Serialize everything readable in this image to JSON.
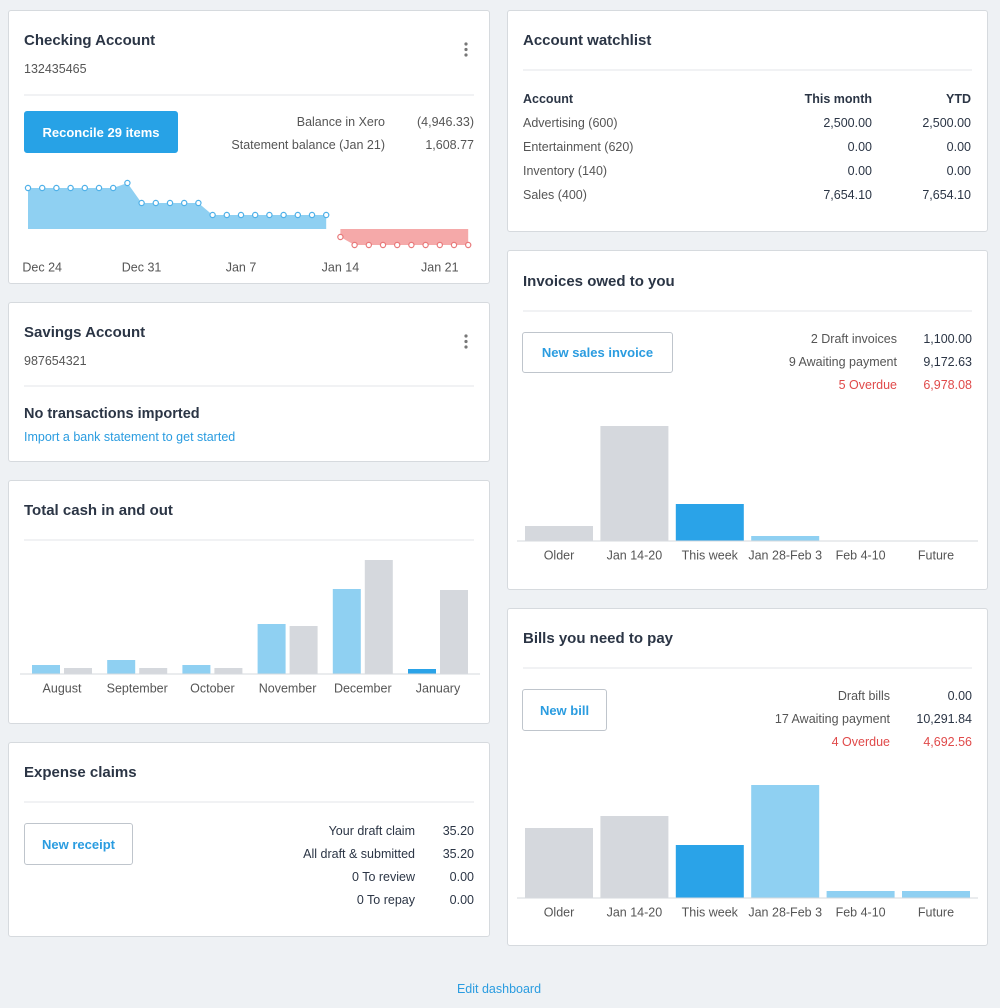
{
  "checking": {
    "title": "Checking Account",
    "number": "132435465",
    "button": "Reconcile 29 items",
    "rows": [
      {
        "label": "Balance in Xero",
        "value": "(4,946.33)"
      },
      {
        "label": "Statement balance (Jan 21)",
        "value": "1,608.77"
      }
    ],
    "chart": {
      "type": "area",
      "categories": [
        null,
        "Dec 24",
        null,
        null,
        null,
        null,
        null,
        null,
        "Dec 31",
        null,
        null,
        null,
        null,
        null,
        null,
        "Jan 7",
        null,
        null,
        null,
        null,
        null,
        null,
        "Jan 14",
        null,
        null,
        null,
        null,
        null,
        null,
        "Jan 21",
        null,
        null
      ],
      "values": [
        41,
        41,
        41,
        41,
        41,
        41,
        41,
        46,
        26,
        26,
        26,
        26,
        26,
        14,
        14,
        14,
        14,
        14,
        14,
        14,
        14,
        14,
        -8,
        -16,
        -16,
        -16,
        -16,
        -16,
        -16,
        -16,
        -16,
        -16
      ],
      "colors": {
        "positive": "#8fd0f2",
        "negative": "#f5a9a9"
      }
    }
  },
  "savings": {
    "title": "Savings Account",
    "number": "987654321",
    "message": "No transactions imported",
    "link": "Import a bank statement to get started"
  },
  "cash": {
    "title": "Total cash in and out",
    "chart": {
      "type": "bar",
      "categories": [
        "August",
        "September",
        "October",
        "November",
        "December",
        "January"
      ],
      "series": [
        {
          "color": "#8fd0f2",
          "colors": [
            "#8fd0f2",
            "#8fd0f2",
            "#8fd0f2",
            "#8fd0f2",
            "#8fd0f2",
            "#2aa3e8"
          ],
          "values": [
            9,
            14,
            9,
            50,
            85,
            5
          ]
        },
        {
          "color": "#d5d8dd",
          "values": [
            6,
            6,
            6,
            48,
            114,
            84
          ]
        }
      ]
    }
  },
  "expense": {
    "title": "Expense claims",
    "button": "New receipt",
    "rows": [
      {
        "label": "Your draft claim",
        "value": "35.20"
      },
      {
        "label": "All draft & submitted",
        "value": "35.20"
      },
      {
        "label": "0 To review",
        "value": "0.00"
      },
      {
        "label": "0 To repay",
        "value": "0.00"
      }
    ]
  },
  "watchlist": {
    "title": "Account watchlist",
    "header": [
      "Account",
      "This month",
      "YTD"
    ],
    "rows": [
      [
        "Advertising (600)",
        "2,500.00",
        "2,500.00"
      ],
      [
        "Entertainment (620)",
        "0.00",
        "0.00"
      ],
      [
        "Inventory (140)",
        "0.00",
        "0.00"
      ],
      [
        "Sales (400)",
        "7,654.10",
        "7,654.10"
      ]
    ]
  },
  "invoices": {
    "title": "Invoices owed to you",
    "button": "New sales invoice",
    "rows": [
      {
        "label": "2 Draft invoices",
        "value": "1,100.00"
      },
      {
        "label": "9 Awaiting payment",
        "value": "9,172.63"
      },
      {
        "label": "5 Overdue",
        "value": "6,978.08"
      }
    ],
    "chart": {
      "type": "bar",
      "categories": [
        "Older",
        "Jan 14-20",
        "This week",
        "Jan 28-Feb 3",
        "Feb 4-10",
        "Future"
      ],
      "values": [
        15,
        115,
        37,
        5,
        0,
        0
      ],
      "colors": [
        "#d5d8dd",
        "#d5d8dd",
        "#2aa3e8",
        "#8fd0f2",
        "#8fd0f2",
        "#8fd0f2"
      ]
    }
  },
  "bills": {
    "title": "Bills you need to pay",
    "button": "New bill",
    "rows": [
      {
        "label": "Draft bills",
        "value": "0.00"
      },
      {
        "label": "17 Awaiting payment",
        "value": "10,291.84"
      },
      {
        "label": "4 Overdue",
        "value": "4,692.56"
      }
    ],
    "chart": {
      "type": "bar",
      "categories": [
        "Older",
        "Jan 14-20",
        "This week",
        "Jan 28-Feb 3",
        "Feb 4-10",
        "Future"
      ],
      "values": [
        70,
        82,
        53,
        113,
        7,
        7
      ],
      "colors": [
        "#d5d8dd",
        "#d5d8dd",
        "#2aa3e8",
        "#8fd0f2",
        "#8fd0f2",
        "#8fd0f2"
      ]
    }
  },
  "footer": {
    "link": "Edit dashboard"
  }
}
